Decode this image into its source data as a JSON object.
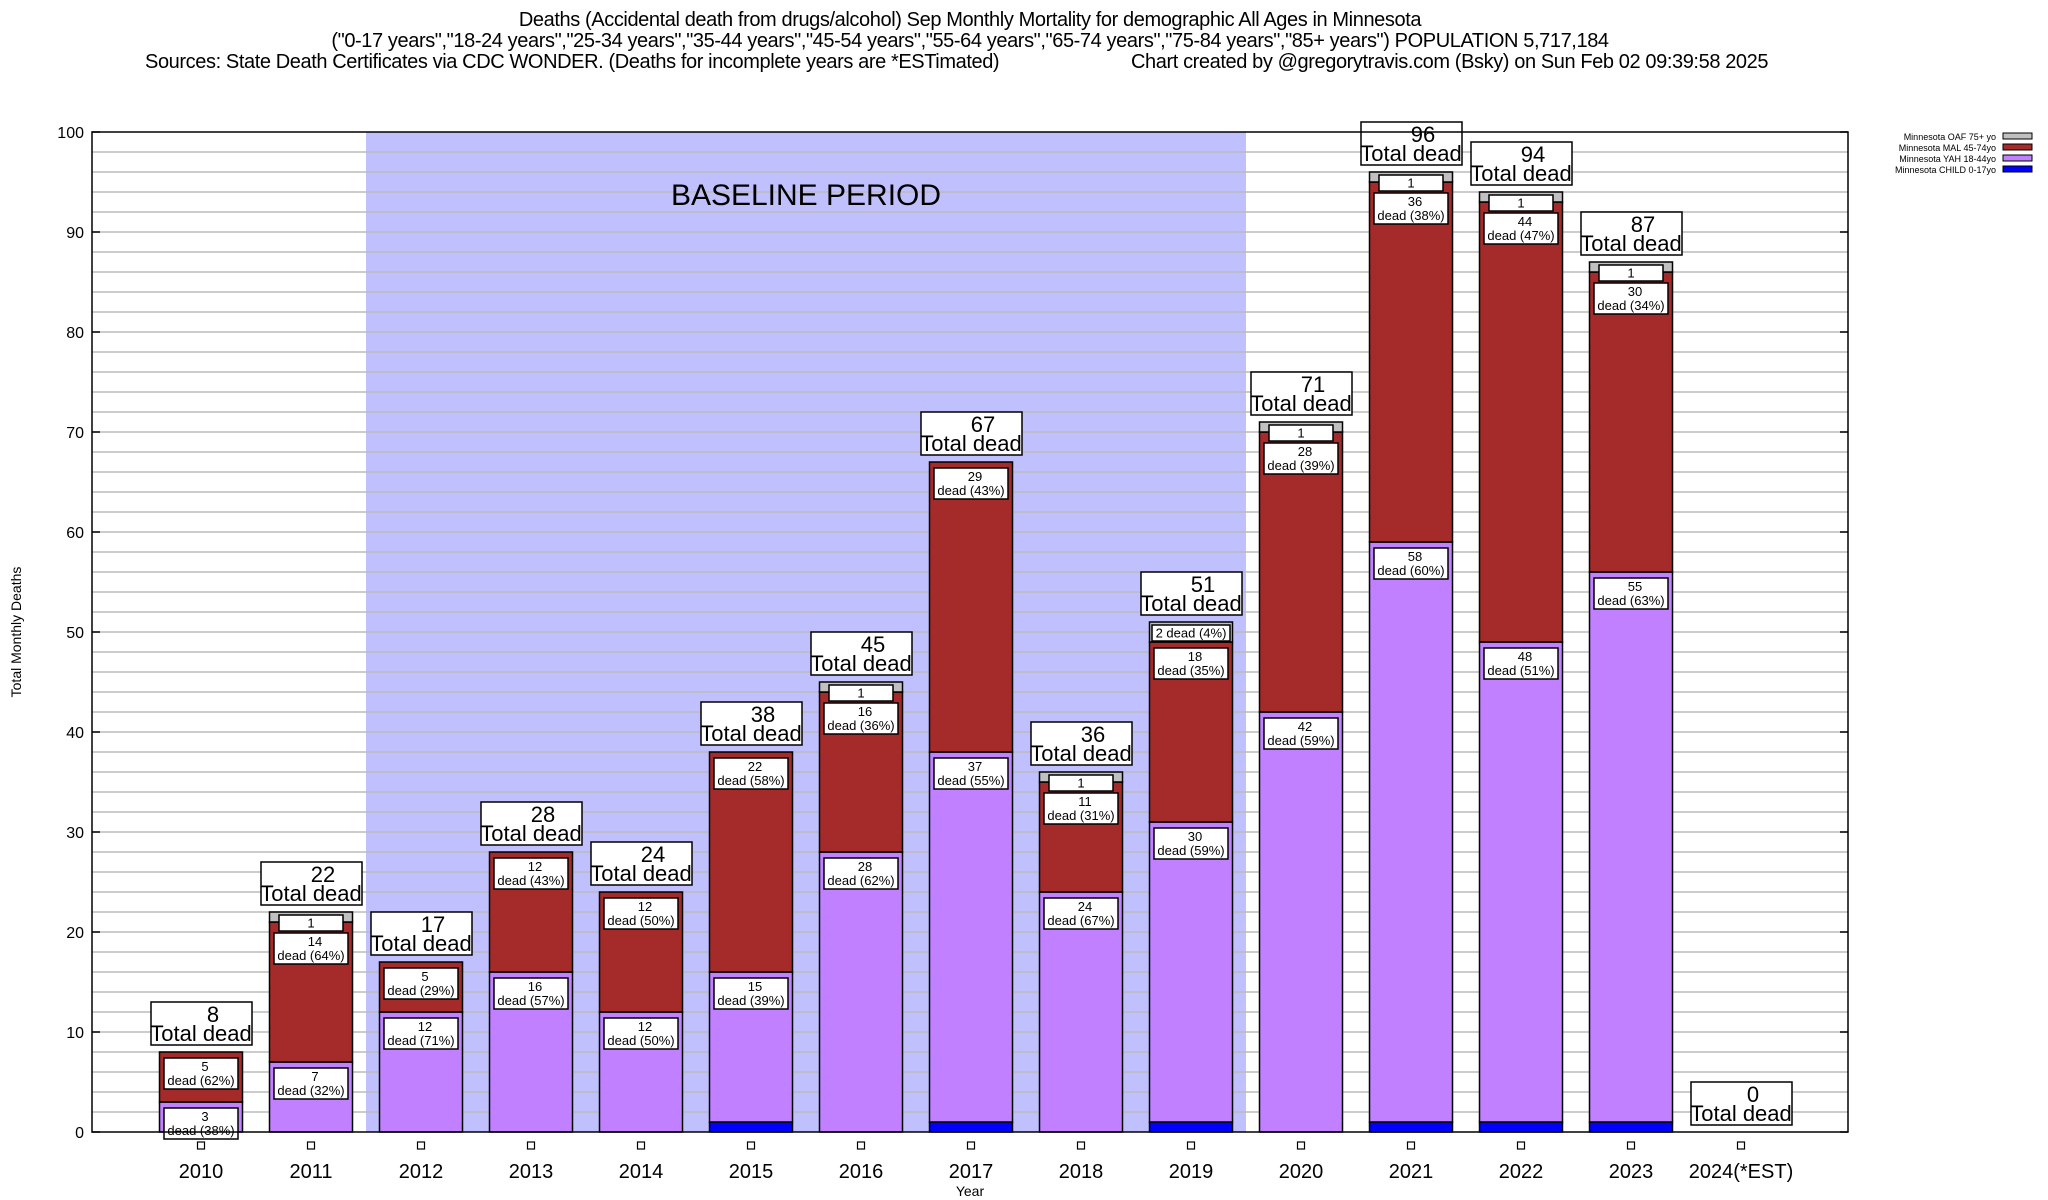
{
  "chart_data": {
    "type": "bar",
    "stacked": true,
    "title_lines": [
      "Deaths (Accidental death from drugs/alcohol) Sep Monthly Mortality for demographic All Ages in Minnesota",
      "(\"0-17 years\",\"18-24 years\",\"25-34 years\",\"35-44 years\",\"45-54 years\",\"55-64 years\",\"65-74 years\",\"75-84 years\",\"85+ years\") POPULATION 5,717,184"
    ],
    "sources": "Sources: State Death Certificates via CDC WONDER. (Deaths for incomplete years are *ESTimated)",
    "credit": "Chart created by @gregorytravis.com (Bsky) on Sun Feb 02 09:39:58 2025",
    "xlabel": "Year",
    "ylabel": "Total Monthly Deaths",
    "ylim": [
      0,
      100
    ],
    "yticks": [
      0,
      10,
      20,
      30,
      40,
      50,
      60,
      70,
      80,
      90,
      100
    ],
    "grid": true,
    "legend_position": "top-right, outside",
    "annotation": {
      "text": "BASELINE PERIOD",
      "from": "2012",
      "to": "2019"
    },
    "baseline_color": "#c0c0ff",
    "total_suffix": "Total dead",
    "dead_word": "dead",
    "categories": [
      "2010",
      "2011",
      "2012",
      "2013",
      "2014",
      "2015",
      "2016",
      "2017",
      "2018",
      "2019",
      "2020",
      "2021",
      "2022",
      "2023",
      "2024(*EST)"
    ],
    "totals": [
      8,
      22,
      17,
      28,
      24,
      38,
      45,
      67,
      36,
      51,
      71,
      96,
      94,
      87,
      0
    ],
    "series": [
      {
        "name": "Minnesota CHILD 0-17yo",
        "color": "#0000ff",
        "values": [
          0,
          0,
          0,
          0,
          0,
          1,
          0,
          1,
          0,
          1,
          0,
          1,
          1,
          1,
          0
        ],
        "pct": [
          null,
          null,
          null,
          null,
          null,
          null,
          null,
          null,
          null,
          null,
          null,
          null,
          null,
          null,
          null
        ]
      },
      {
        "name": "Minnesota YAH 18-44yo",
        "color": "#c080ff",
        "values": [
          3,
          7,
          12,
          16,
          12,
          15,
          28,
          37,
          24,
          30,
          42,
          58,
          48,
          55,
          0
        ],
        "pct": [
          38,
          32,
          71,
          57,
          50,
          39,
          62,
          55,
          67,
          59,
          59,
          60,
          51,
          63,
          null
        ]
      },
      {
        "name": "Minnesota MAL 45-74yo",
        "color": "#a52a2a",
        "values": [
          5,
          14,
          5,
          12,
          12,
          22,
          16,
          29,
          11,
          18,
          28,
          36,
          44,
          30,
          0
        ],
        "pct": [
          62,
          64,
          29,
          43,
          50,
          58,
          36,
          43,
          31,
          35,
          39,
          38,
          47,
          34,
          null
        ]
      },
      {
        "name": "Minnesota OAF 75+ yo",
        "color": "#c0c0c0",
        "values": [
          0,
          1,
          0,
          0,
          0,
          0,
          1,
          0,
          1,
          2,
          1,
          1,
          1,
          1,
          0
        ],
        "pct": [
          null,
          null,
          null,
          null,
          null,
          null,
          null,
          null,
          null,
          4,
          null,
          null,
          null,
          null,
          null
        ]
      }
    ]
  }
}
